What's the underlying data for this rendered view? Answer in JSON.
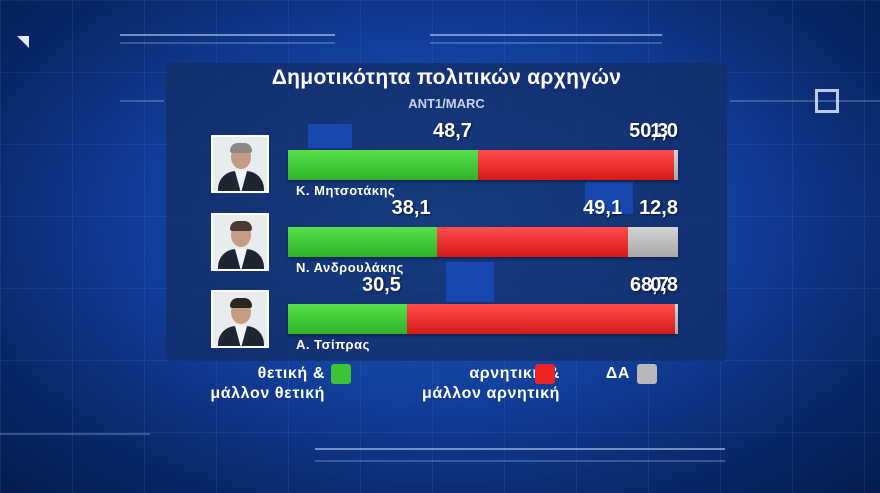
{
  "chart_data": {
    "type": "bar",
    "stacked": true,
    "orientation": "horizontal",
    "title": "Δημοτικότητα πολιτικών αρχηγών",
    "subtitle": "ANT1/MARC",
    "categories": [
      "Κ. Μητσοτάκης",
      "Ν. Ανδρουλάκης",
      "Α. Τσίπρας"
    ],
    "value_labels": [
      [
        "48,7",
        "50,3",
        "1,0"
      ],
      [
        "38,1",
        "49,1",
        "12,8"
      ],
      [
        "30,5",
        "68,7",
        "0,8"
      ]
    ],
    "series": [
      {
        "name": "θετική & μάλλον θετική",
        "values": [
          48.7,
          38.1,
          30.5
        ],
        "color": "#3cc435"
      },
      {
        "name": "αρνητική & μάλλον αρνητική",
        "values": [
          50.3,
          49.1,
          68.7
        ],
        "color": "#ee2424"
      },
      {
        "name": "ΔΑ",
        "values": [
          1.0,
          12.8,
          0.8
        ],
        "color": "#b8b8b8"
      }
    ],
    "xlim": [
      0,
      100
    ],
    "legend": {
      "position": "bottom",
      "items": [
        {
          "line1": "θετική  &",
          "line2": "μάλλον  θετική",
          "color": "#3cc435"
        },
        {
          "line1": "αρνητική  &",
          "line2": "μάλλον  αρνητική",
          "color": "#ee2424"
        },
        {
          "line1": "ΔΑ",
          "line2": "",
          "color": "#b8b8b8"
        }
      ]
    }
  }
}
